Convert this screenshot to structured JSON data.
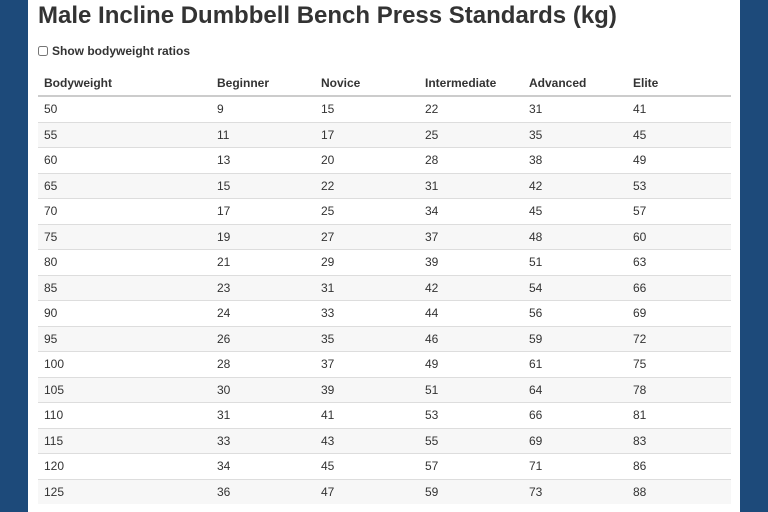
{
  "header": {
    "title": "Male Incline Dumbbell Bench Press Standards (kg)",
    "checkbox_label": "Show bodyweight ratios"
  },
  "table": {
    "headers": [
      "Bodyweight",
      "Beginner",
      "Novice",
      "Intermediate",
      "Advanced",
      "Elite"
    ],
    "rows": [
      [
        50,
        9,
        15,
        22,
        31,
        41
      ],
      [
        55,
        11,
        17,
        25,
        35,
        45
      ],
      [
        60,
        13,
        20,
        28,
        38,
        49
      ],
      [
        65,
        15,
        22,
        31,
        42,
        53
      ],
      [
        70,
        17,
        25,
        34,
        45,
        57
      ],
      [
        75,
        19,
        27,
        37,
        48,
        60
      ],
      [
        80,
        21,
        29,
        39,
        51,
        63
      ],
      [
        85,
        23,
        31,
        42,
        54,
        66
      ],
      [
        90,
        24,
        33,
        44,
        56,
        69
      ],
      [
        95,
        26,
        35,
        46,
        59,
        72
      ],
      [
        100,
        28,
        37,
        49,
        61,
        75
      ],
      [
        105,
        30,
        39,
        51,
        64,
        78
      ],
      [
        110,
        31,
        41,
        53,
        66,
        81
      ],
      [
        115,
        33,
        43,
        55,
        69,
        83
      ],
      [
        120,
        34,
        45,
        57,
        71,
        86
      ],
      [
        125,
        36,
        47,
        59,
        73,
        88
      ]
    ]
  }
}
